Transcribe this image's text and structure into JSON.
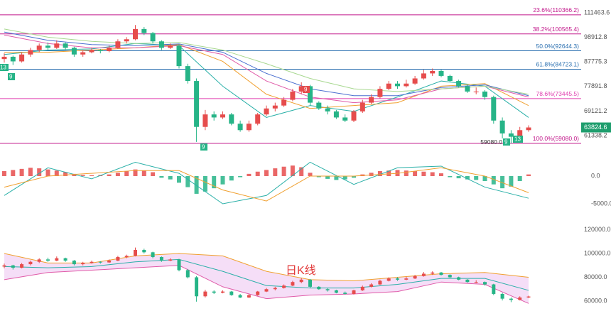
{
  "chart_data": {
    "type": "candlestick",
    "ylim": [
      57450,
      118600
    ],
    "log_scale": true,
    "yticks": [
      111463.6,
      98912.8,
      87775.3,
      77891.8,
      69121.2,
      61338.2
    ],
    "fib_levels": [
      {
        "value": 110366.2,
        "label": "23.6%(110366.2)",
        "color": "#c2188b"
      },
      {
        "value": 100565.4,
        "label": "38.2%(100565.4)",
        "color": "#c2188b"
      },
      {
        "value": 92644.3,
        "label": "50.0%(92644.3)",
        "color": "#2a6fb0"
      },
      {
        "value": 84723.1,
        "label": "61.8%(84723.1)",
        "color": "#2a6fb0"
      },
      {
        "value": 73445.5,
        "label": "78.6%(73445.5)",
        "color": "#e040b0"
      },
      {
        "value": 59080.0,
        "label": "100.0%(59080.0)",
        "color": "#c2188b"
      }
    ],
    "current_price": 63824.6,
    "low_label": {
      "value": 59080,
      "label": "59080.0"
    },
    "markers": [
      {
        "text": "9"
      },
      {
        "text": "13"
      },
      {
        "text": "9"
      },
      {
        "text": "9"
      },
      {
        "text": "13"
      },
      {
        "text": "9"
      }
    ],
    "up_color": "#e64c4c",
    "down_color": "#26b487",
    "ohlc": [
      [
        89000,
        91500,
        87500,
        90000
      ],
      [
        90000,
        90500,
        86500,
        88000
      ],
      [
        88000,
        92000,
        87500,
        91000
      ],
      [
        91000,
        94000,
        90000,
        93000
      ],
      [
        93000,
        96000,
        92000,
        95000
      ],
      [
        95000,
        96500,
        93000,
        94000
      ],
      [
        94000,
        97500,
        93500,
        96000
      ],
      [
        96000,
        96500,
        93000,
        94000
      ],
      [
        94000,
        94500,
        90000,
        91000
      ],
      [
        91000,
        93000,
        90000,
        92000
      ],
      [
        92000,
        94000,
        91500,
        93000
      ],
      [
        93000,
        93500,
        91500,
        92500
      ],
      [
        92500,
        95000,
        92000,
        94000
      ],
      [
        94000,
        98000,
        93500,
        97000
      ],
      [
        97000,
        99000,
        96000,
        98000
      ],
      [
        98000,
        105000,
        97500,
        103000
      ],
      [
        103000,
        104000,
        100000,
        101000
      ],
      [
        101000,
        101500,
        96000,
        97000
      ],
      [
        97000,
        97500,
        93000,
        94000
      ],
      [
        94000,
        96000,
        93500,
        95000
      ],
      [
        95000,
        95500,
        85000,
        86000
      ],
      [
        86000,
        87000,
        79000,
        80000
      ],
      [
        80000,
        81000,
        59500,
        64000
      ],
      [
        64000,
        69500,
        63000,
        68000
      ],
      [
        68000,
        69000,
        66000,
        67000
      ],
      [
        67000,
        69000,
        66500,
        68000
      ],
      [
        68000,
        68500,
        64500,
        65000
      ],
      [
        65000,
        66000,
        62500,
        63000
      ],
      [
        63000,
        66000,
        62500,
        65000
      ],
      [
        65000,
        68500,
        64500,
        68000
      ],
      [
        68000,
        71000,
        67500,
        70000
      ],
      [
        70000,
        72000,
        69000,
        71000
      ],
      [
        71000,
        74000,
        70500,
        73000
      ],
      [
        73000,
        77000,
        72500,
        76000
      ],
      [
        76000,
        79500,
        75000,
        78000
      ],
      [
        78000,
        78500,
        71000,
        72000
      ],
      [
        72000,
        72500,
        69500,
        70000
      ],
      [
        70000,
        71000,
        68000,
        69000
      ],
      [
        69000,
        69500,
        66500,
        67000
      ],
      [
        67000,
        68000,
        65500,
        66000
      ],
      [
        66000,
        69500,
        65500,
        69000
      ],
      [
        69000,
        73000,
        68500,
        72000
      ],
      [
        72000,
        75000,
        71500,
        74000
      ],
      [
        74000,
        78000,
        73500,
        77000
      ],
      [
        77000,
        80000,
        76500,
        79000
      ],
      [
        79000,
        80000,
        77000,
        78000
      ],
      [
        78000,
        80500,
        77500,
        79000
      ],
      [
        79000,
        82000,
        78500,
        81000
      ],
      [
        81000,
        84500,
        80500,
        83000
      ],
      [
        83000,
        85000,
        82000,
        84000
      ],
      [
        84000,
        84500,
        81500,
        82000
      ],
      [
        82000,
        82500,
        79500,
        80000
      ],
      [
        80000,
        80500,
        77500,
        78000
      ],
      [
        78000,
        78500,
        75500,
        76000
      ],
      [
        76000,
        77500,
        75000,
        76000
      ],
      [
        76000,
        76500,
        73000,
        74000
      ],
      [
        74000,
        74500,
        65000,
        66000
      ],
      [
        66000,
        67000,
        60500,
        62000
      ],
      [
        62000,
        63000,
        59080,
        61000
      ],
      [
        61000,
        64000,
        60500,
        63000
      ],
      [
        63000,
        64500,
        62500,
        63824.6
      ]
    ],
    "series": [
      {
        "color": "#2ab0a8",
        "values": [
          91000,
          93000,
          93500,
          96000,
          95000,
          78000,
          67000,
          71000,
          69000,
          74000,
          80000,
          78000,
          67000
        ]
      },
      {
        "color": "#f0a030",
        "values": [
          92000,
          92000,
          93000,
          94000,
          95500,
          88000,
          75000,
          70000,
          71000,
          72000,
          78000,
          79000,
          71000
        ]
      },
      {
        "color": "#e05aa8",
        "values": [
          100000,
          96000,
          94000,
          94000,
          95000,
          91000,
          80000,
          74000,
          72000,
          73000,
          77000,
          78000,
          74000
        ]
      },
      {
        "color": "#4a6fd0",
        "values": [
          101500,
          97500,
          95500,
          95000,
          95800,
          92000,
          83000,
          77000,
          74500,
          74500,
          77500,
          78500,
          74500
        ]
      },
      {
        "color": "#a8d890",
        "values": [
          103000,
          99000,
          97000,
          96000,
          96500,
          93000,
          87000,
          81000,
          77000,
          76000,
          77000,
          78000,
          75000
        ]
      }
    ],
    "macd": {
      "ylim": [
        -6670,
        4230
      ],
      "yticks": [
        {
          "value": 0,
          "label": "0.0"
        },
        {
          "value": -5000,
          "label": "-5000.0"
        }
      ],
      "histogram": [
        900,
        1100,
        1300,
        1500,
        1400,
        1200,
        1000,
        700,
        400,
        200,
        150,
        200,
        300,
        600,
        900,
        1200,
        1000,
        700,
        -300,
        -600,
        -1200,
        -2000,
        -3200,
        -2800,
        -2200,
        -1500,
        -800,
        -200,
        400,
        800,
        1100,
        1400,
        1700,
        1900,
        1600,
        600,
        -200,
        -500,
        -700,
        -600,
        -300,
        300,
        600,
        900,
        1000,
        1100,
        1000,
        900,
        800,
        700,
        500,
        -200,
        -400,
        -600,
        -700,
        -900,
        -1500,
        -2200,
        -1900,
        -900,
        300
      ],
      "series": [
        {
          "color": "#2ab0a8",
          "values": [
            -3500,
            1500,
            -500,
            2500,
            500,
            -5000,
            -3500,
            2500,
            -1500,
            1500,
            1800,
            -2000,
            -4000
          ]
        },
        {
          "color": "#f0a030",
          "values": [
            -2000,
            0,
            500,
            1000,
            1000,
            -2500,
            -4500,
            0,
            0,
            500,
            1500,
            0,
            -3000
          ]
        }
      ]
    },
    "boll": {
      "ylim": [
        51640,
        128060
      ],
      "yticks": [
        {
          "value": 120000,
          "label": "120000.0"
        },
        {
          "value": 100000,
          "label": "100000.0"
        },
        {
          "value": 80000,
          "label": "80000.0"
        },
        {
          "value": 60000,
          "label": "60000.0"
        }
      ],
      "label": "日K线",
      "upper": [
        100000,
        92000,
        92000,
        98000,
        100000,
        98000,
        85000,
        78000,
        77000,
        80000,
        83000,
        84000,
        80000
      ],
      "mid": [
        89000,
        88000,
        89000,
        93000,
        95000,
        85000,
        73000,
        71000,
        71000,
        74000,
        79000,
        79000,
        69000
      ],
      "lower": [
        78000,
        84000,
        86000,
        88000,
        90000,
        72000,
        62000,
        65000,
        66000,
        68000,
        76000,
        74000,
        58000
      ]
    }
  }
}
